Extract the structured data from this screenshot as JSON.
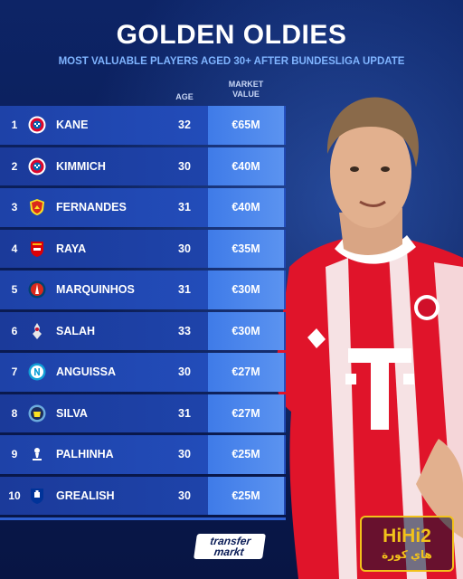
{
  "header": {
    "title": "GOLDEN OLDIES",
    "subtitle": "MOST VALUABLE PLAYERS AGED 30+ AFTER BUNDESLIGA UPDATE"
  },
  "columns": {
    "age": "AGE",
    "market_value_line1": "MARKET",
    "market_value_line2": "VALUE"
  },
  "players": [
    {
      "rank": "1",
      "name": "KANE",
      "age": "32",
      "value": "€65M",
      "club_icon": "bayern-munich-crest"
    },
    {
      "rank": "2",
      "name": "KIMMICH",
      "age": "30",
      "value": "€40M",
      "club_icon": "bayern-munich-crest"
    },
    {
      "rank": "3",
      "name": "FERNANDES",
      "age": "31",
      "value": "€40M",
      "club_icon": "manchester-united-crest"
    },
    {
      "rank": "4",
      "name": "RAYA",
      "age": "30",
      "value": "€35M",
      "club_icon": "arsenal-crest"
    },
    {
      "rank": "5",
      "name": "MARQUINHOS",
      "age": "31",
      "value": "€30M",
      "club_icon": "psg-crest"
    },
    {
      "rank": "6",
      "name": "SALAH",
      "age": "33",
      "value": "€30M",
      "club_icon": "liverpool-crest"
    },
    {
      "rank": "7",
      "name": "ANGUISSA",
      "age": "30",
      "value": "€27M",
      "club_icon": "napoli-crest"
    },
    {
      "rank": "8",
      "name": "SILVA",
      "age": "31",
      "value": "€27M",
      "club_icon": "manchester-city-crest"
    },
    {
      "rank": "9",
      "name": "PALHINHA",
      "age": "30",
      "value": "€25M",
      "club_icon": "tottenham-crest"
    },
    {
      "rank": "10",
      "name": "GREALISH",
      "age": "30",
      "value": "€25M",
      "club_icon": "everton-crest"
    }
  ],
  "branding": {
    "transfermarkt_line1": "transfer",
    "transfermarkt_line2": "markt",
    "watermark_main": "HiHi2",
    "watermark_sub": "هاي كورة"
  },
  "colors": {
    "background": "#0a1c57",
    "row": "#1f47b0",
    "value_cell": "#4a86ec",
    "accent_text": "#7fb4ff",
    "watermark": "#f2c21b"
  }
}
